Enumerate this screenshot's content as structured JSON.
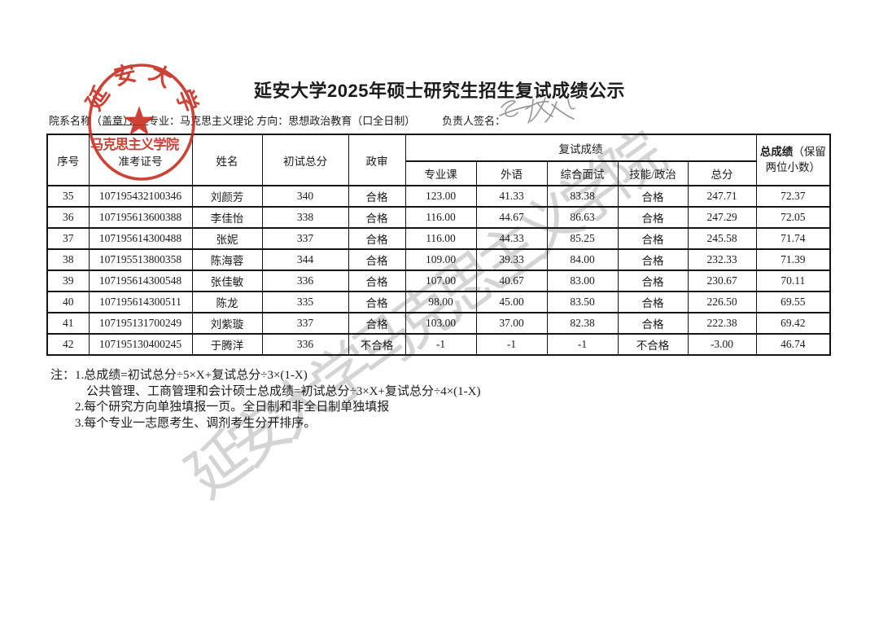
{
  "page": {
    "title": "延安大学2025年硕士研究生招生复试成绩公示",
    "watermark": "延安大学马克思主义学院",
    "info": {
      "dept_label": "院系名称（盖章）：",
      "major_and_direction": "专业：马克思主义理论 方向：思想政治教育（口全日制）",
      "sign_label": "负责人签名：",
      "signature_handwritten": "高树权"
    },
    "seal": {
      "arc_text": "延安大学",
      "bottom_text": "马克思主义学院",
      "color": "#c5281c"
    },
    "colors": {
      "seal_red": "#c5281c",
      "watermark_gray": "#d4d4d4",
      "ink": "#1b1b1b"
    }
  },
  "table": {
    "headers": {
      "xuhao": "序号",
      "zhunkaozhenghao": "准考证号",
      "xingming": "姓名",
      "chushizongfen": "初试总分",
      "zhengshen": "政审",
      "fushichengji": "复试成绩",
      "zhuanyeke": "专业课",
      "waiyu": "外语",
      "zonghemianshi": "综合面试",
      "jineng_zhengzhi": "技能/政治",
      "zongfen": "总分",
      "zongchengji": "总成绩",
      "zongchengji_note": "（保留两位小数）"
    },
    "rows": [
      [
        "35",
        "107195432100346",
        "刘颜芳",
        "340",
        "合格",
        "123.00",
        "41.33",
        "83.38",
        "合格",
        "247.71",
        "72.37"
      ],
      [
        "36",
        "107195613600388",
        "李佳怡",
        "338",
        "合格",
        "116.00",
        "44.67",
        "86.63",
        "合格",
        "247.29",
        "72.05"
      ],
      [
        "37",
        "107195614300488",
        "张妮",
        "337",
        "合格",
        "116.00",
        "44.33",
        "85.25",
        "合格",
        "245.58",
        "71.74"
      ],
      [
        "38",
        "107195513800358",
        "陈海蓉",
        "344",
        "合格",
        "109.00",
        "39.33",
        "84.00",
        "合格",
        "232.33",
        "71.39"
      ],
      [
        "39",
        "107195614300548",
        "张佳敏",
        "336",
        "合格",
        "107.00",
        "40.67",
        "83.00",
        "合格",
        "230.67",
        "70.11"
      ],
      [
        "40",
        "107195614300511",
        "陈龙",
        "335",
        "合格",
        "98.00",
        "45.00",
        "83.50",
        "合格",
        "226.50",
        "69.55"
      ],
      [
        "41",
        "107195131700249",
        "刘紫璇",
        "337",
        "合格",
        "103.00",
        "37.00",
        "82.38",
        "合格",
        "222.38",
        "69.42"
      ],
      [
        "42",
        "107195130400245",
        "于腾洋",
        "336",
        "不合格",
        "-1",
        "-1",
        "-1",
        "不合格",
        "-3.00",
        "46.74"
      ]
    ]
  },
  "notes": {
    "label": "注：",
    "lines": [
      "1.总成绩=初试总分÷5×X+复试总分÷3×(1-X)",
      "公共管理、工商管理和会计硕士总成绩=初试总分÷3×X+复试总分÷4×(1-X)",
      "2.每个研究方向单独填报一页。全日制和非全日制单独填报",
      "3.每个专业一志愿考生、调剂考生分开排序。"
    ]
  }
}
